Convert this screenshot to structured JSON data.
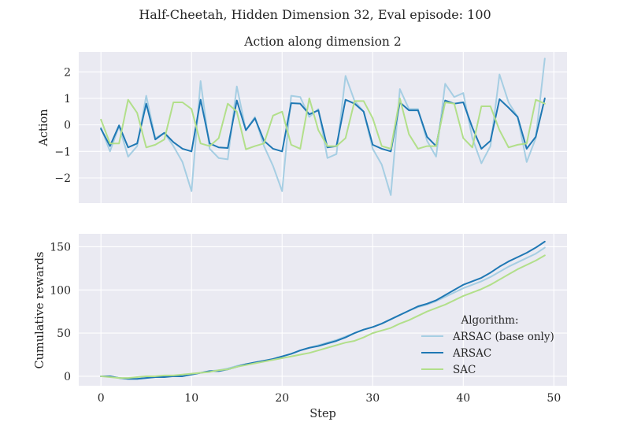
{
  "chart_data": [
    {
      "type": "line",
      "suptitle": "Half-Cheetah, Hidden Dimension 32, Eval episode: 100",
      "title": "Action along dimension 2",
      "xlabel": "",
      "ylabel": "Action",
      "xlim": [
        -2.45,
        51.45
      ],
      "ylim": [
        -2.95,
        2.75
      ],
      "x_ticks": [
        0,
        10,
        20,
        30,
        40,
        50
      ],
      "y_ticks": [
        -2,
        -1,
        0,
        1,
        2
      ],
      "y_tick_labels": [
        "−2",
        "−1",
        "0",
        "1",
        "2"
      ],
      "x": [
        0,
        1,
        2,
        3,
        4,
        5,
        6,
        7,
        8,
        9,
        10,
        11,
        12,
        13,
        14,
        15,
        16,
        17,
        18,
        19,
        20,
        21,
        22,
        23,
        24,
        25,
        26,
        27,
        28,
        29,
        30,
        31,
        32,
        33,
        34,
        35,
        36,
        37,
        38,
        39,
        40,
        41,
        42,
        43,
        44,
        45,
        46,
        47,
        48,
        49
      ],
      "series": [
        {
          "name": "ARSAC (base only)",
          "color": "#a6cee3",
          "values": [
            -0.1,
            -1.0,
            -0.05,
            -1.2,
            -0.8,
            1.1,
            -0.5,
            -0.3,
            -0.8,
            -1.4,
            -2.5,
            1.65,
            -0.9,
            -1.25,
            -1.3,
            1.45,
            -0.2,
            0.3,
            -0.8,
            -1.55,
            -2.5,
            1.1,
            1.05,
            0.3,
            0.6,
            -1.25,
            -1.1,
            1.85,
            0.9,
            0.5,
            -0.9,
            -1.5,
            -2.65,
            1.35,
            0.6,
            0.6,
            -0.6,
            -1.2,
            1.55,
            1.05,
            1.2,
            -0.5,
            -1.45,
            -0.8,
            1.9,
            0.85,
            0.3,
            -1.4,
            -0.5,
            2.5
          ]
        },
        {
          "name": "ARSAC",
          "color": "#1f78b4",
          "values": [
            -0.15,
            -0.8,
            -0.02,
            -0.85,
            -0.7,
            0.8,
            -0.55,
            -0.3,
            -0.65,
            -0.9,
            -1.0,
            0.95,
            -0.7,
            -0.85,
            -0.87,
            0.92,
            -0.2,
            0.25,
            -0.6,
            -0.9,
            -1.0,
            0.82,
            0.8,
            0.4,
            0.55,
            -0.85,
            -0.8,
            0.95,
            0.8,
            0.5,
            -0.75,
            -0.9,
            -1.0,
            0.85,
            0.55,
            0.55,
            -0.45,
            -0.8,
            0.92,
            0.8,
            0.85,
            -0.1,
            -0.9,
            -0.6,
            0.97,
            0.65,
            0.3,
            -0.9,
            -0.45,
            1.0
          ]
        },
        {
          "name": "SAC",
          "color": "#b2df8a",
          "values": [
            0.2,
            -0.7,
            -0.7,
            0.95,
            0.45,
            -0.85,
            -0.75,
            -0.55,
            0.85,
            0.85,
            0.6,
            -0.7,
            -0.8,
            -0.5,
            0.8,
            0.5,
            -0.92,
            -0.8,
            -0.7,
            0.35,
            0.5,
            -0.75,
            -0.9,
            1.0,
            -0.2,
            -0.8,
            -0.8,
            -0.5,
            0.9,
            0.9,
            0.25,
            -0.8,
            -0.9,
            1.0,
            -0.35,
            -0.9,
            -0.8,
            -0.8,
            0.85,
            0.8,
            -0.5,
            -0.85,
            0.7,
            0.7,
            -0.2,
            -0.85,
            -0.75,
            -0.7,
            0.95,
            0.8
          ]
        }
      ]
    },
    {
      "type": "line",
      "title": "",
      "xlabel": "Step",
      "ylabel": "Cumulative rewards",
      "xlim": [
        -2.45,
        51.45
      ],
      "ylim": [
        -11,
        165
      ],
      "x_ticks": [
        0,
        10,
        20,
        30,
        40,
        50
      ],
      "y_ticks": [
        0,
        50,
        100,
        150
      ],
      "legend": {
        "title": "Algorithm:",
        "position": "bottom-right"
      },
      "x": [
        0,
        1,
        2,
        3,
        4,
        5,
        6,
        7,
        8,
        9,
        10,
        11,
        12,
        13,
        14,
        15,
        16,
        17,
        18,
        19,
        20,
        21,
        22,
        23,
        24,
        25,
        26,
        27,
        28,
        29,
        30,
        31,
        32,
        33,
        34,
        35,
        36,
        37,
        38,
        39,
        40,
        41,
        42,
        43,
        44,
        45,
        46,
        47,
        48,
        49
      ],
      "series": [
        {
          "name": "ARSAC (base only)",
          "color": "#a6cee3",
          "values": [
            0,
            0,
            -2,
            -3,
            -3,
            -2,
            -1,
            0,
            0,
            1,
            2,
            4,
            6,
            7,
            9,
            12,
            14,
            16,
            18,
            20,
            23,
            26,
            30,
            33,
            36,
            39,
            42,
            46,
            50,
            54,
            57,
            61,
            66,
            71,
            76,
            80,
            83,
            87,
            92,
            97,
            102,
            106,
            110,
            115,
            121,
            127,
            132,
            137,
            142,
            149
          ]
        },
        {
          "name": "ARSAC",
          "color": "#1f78b4",
          "values": [
            0,
            0,
            -2,
            -3,
            -3,
            -2,
            -1,
            -1,
            0,
            0,
            2,
            4,
            6,
            6,
            8,
            11,
            14,
            16,
            18,
            20,
            23,
            26,
            30,
            33,
            35,
            38,
            41,
            45,
            50,
            54,
            57,
            61,
            66,
            71,
            76,
            81,
            84,
            88,
            94,
            100,
            106,
            110,
            114,
            120,
            127,
            133,
            138,
            143,
            149,
            156
          ]
        },
        {
          "name": "SAC",
          "color": "#b2df8a",
          "values": [
            0,
            -1,
            -2,
            -2,
            -1,
            0,
            0,
            1,
            1,
            2,
            3,
            4,
            5,
            7,
            8,
            11,
            13,
            15,
            17,
            19,
            21,
            23,
            25,
            27,
            30,
            33,
            36,
            39,
            41,
            45,
            50,
            53,
            56,
            61,
            65,
            70,
            75,
            79,
            83,
            88,
            93,
            97,
            101,
            106,
            112,
            118,
            124,
            129,
            134,
            140
          ]
        }
      ]
    }
  ]
}
